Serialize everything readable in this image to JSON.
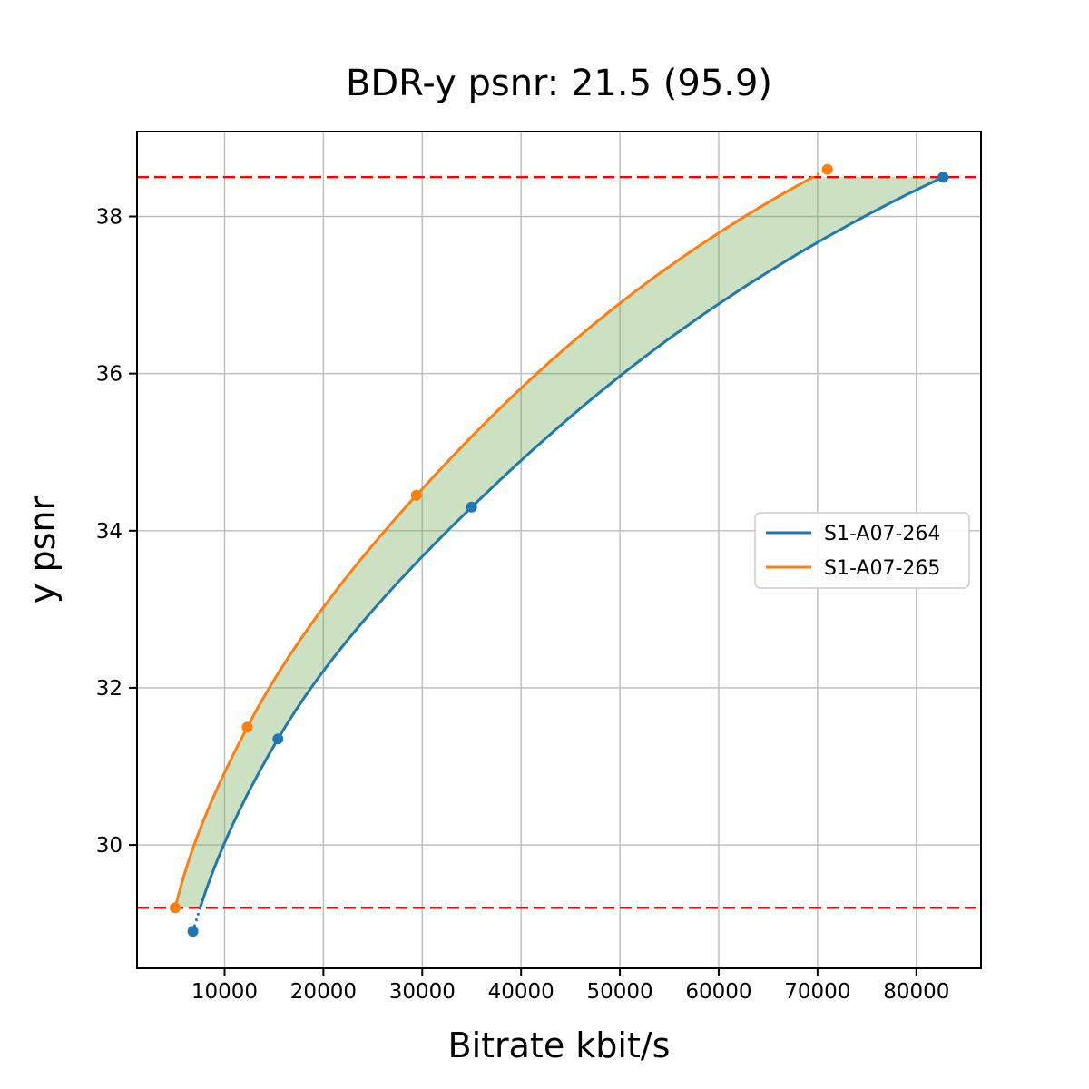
{
  "chart_data": {
    "type": "line",
    "title": "BDR-y psnr: 21.5 (95.9)",
    "xlabel": "Bitrate kbit/s",
    "ylabel": "y psnr",
    "xlim": [
      1140,
      86540
    ],
    "ylim": [
      28.43,
      39.08
    ],
    "xticks": [
      10000,
      20000,
      30000,
      40000,
      50000,
      60000,
      70000,
      80000
    ],
    "yticks": [
      30,
      32,
      34,
      36,
      38
    ],
    "grid": true,
    "grid_color": "#bcbcbc",
    "spine_color": "#000000",
    "series": [
      {
        "name": "S1-A07-264",
        "color": "#1f77b4",
        "points": [
          [
            6800,
            28.9
          ],
          [
            15400,
            31.35
          ],
          [
            35000,
            34.3
          ],
          [
            82700,
            38.5
          ]
        ]
      },
      {
        "name": "S1-A07-265",
        "color": "#ff7f0e",
        "points": [
          [
            5000,
            29.2
          ],
          [
            12300,
            31.5
          ],
          [
            29400,
            34.45
          ],
          [
            71000,
            38.6
          ]
        ]
      }
    ],
    "bd_interval_lines": {
      "low": 29.2,
      "high": 38.5,
      "color": "#ff0000",
      "style": "dashed"
    },
    "fill_between": {
      "between": [
        "S1-A07-265",
        "S1-A07-264"
      ],
      "color": "#6aa84f",
      "opacity": 0.35
    },
    "legend": {
      "position": "center-right",
      "entries": [
        "S1-A07-264",
        "S1-A07-265"
      ]
    }
  }
}
